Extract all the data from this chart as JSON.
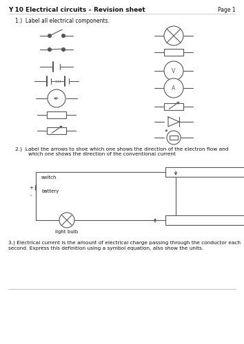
{
  "title": "Y 10 Electrical circuits – Revision sheet",
  "page": "Page 1",
  "section1_label": "1.)  Label all electrical components.",
  "section2_label": "2.)  Label the arrows to shoe which one shows the direction of the electron flow and\n        which one shows the direction of the conventional current",
  "section3_label": "3.) Electrical current is the amount of electrical charge passing through the conductor each\nsecond. Express this definition using a symbol equation, also show the units.",
  "bg_color": "#ffffff",
  "line_color": "#555555",
  "text_color": "#111111"
}
